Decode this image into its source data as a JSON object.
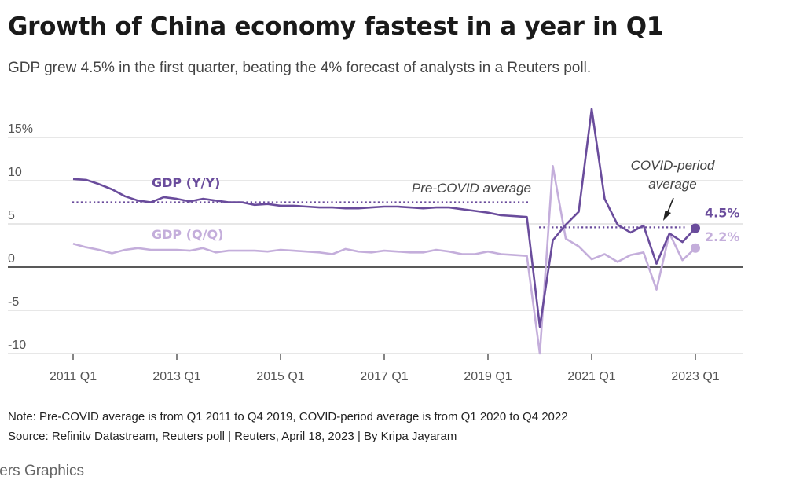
{
  "header": {
    "title": "Growth of China economy fastest in a year in Q1",
    "subtitle": "GDP grew 4.5% in the first quarter, beating the 4% forecast of analysts in a Reuters poll."
  },
  "chart_data": {
    "type": "line",
    "title": "",
    "xlabel": "",
    "ylabel": "",
    "ylim": [
      -10,
      18
    ],
    "y_ticks": [
      {
        "value": 15,
        "label": "15%"
      },
      {
        "value": 10,
        "label": "10"
      },
      {
        "value": 5,
        "label": "5"
      },
      {
        "value": 0,
        "label": "0"
      },
      {
        "value": -5,
        "label": "-5"
      },
      {
        "value": -10,
        "label": "-10"
      }
    ],
    "x_ticks": [
      "2011 Q1",
      "2013 Q1",
      "2015 Q1",
      "2017 Q1",
      "2019 Q1",
      "2021 Q1",
      "2023 Q1"
    ],
    "x_start": "2011 Q1",
    "x_end": "2023 Q1",
    "grid": true,
    "series": [
      {
        "name": "GDP (Y/Y)",
        "color": "#6a4c9c",
        "end_label": "4.5%",
        "values": [
          10.2,
          10.1,
          9.6,
          9.0,
          8.2,
          7.7,
          7.5,
          8.1,
          7.9,
          7.6,
          7.9,
          7.7,
          7.5,
          7.5,
          7.2,
          7.3,
          7.1,
          7.1,
          7.0,
          6.9,
          6.9,
          6.8,
          6.8,
          6.9,
          7.0,
          7.0,
          6.9,
          6.8,
          6.9,
          6.9,
          6.7,
          6.5,
          6.3,
          6.0,
          5.9,
          5.8,
          -6.9,
          3.1,
          4.9,
          6.4,
          18.3,
          7.9,
          4.9,
          4.0,
          4.8,
          0.4,
          3.9,
          2.9,
          4.5
        ]
      },
      {
        "name": "GDP (Q/Q)",
        "color": "#c4aedb",
        "end_label": "2.2%",
        "values": [
          2.7,
          2.3,
          2.0,
          1.6,
          2.0,
          2.2,
          2.0,
          2.0,
          2.0,
          1.9,
          2.2,
          1.7,
          1.9,
          1.9,
          1.9,
          1.8,
          2.0,
          1.9,
          1.8,
          1.7,
          1.5,
          2.1,
          1.8,
          1.7,
          1.9,
          1.8,
          1.7,
          1.7,
          2.0,
          1.8,
          1.5,
          1.5,
          1.8,
          1.5,
          1.4,
          1.3,
          -10.0,
          11.7,
          3.3,
          2.4,
          0.9,
          1.5,
          0.6,
          1.4,
          1.7,
          -2.6,
          3.9,
          0.8,
          2.2
        ]
      }
    ],
    "reference_lines": [
      {
        "label": "Pre-COVID average",
        "value": 7.5,
        "from": "2011 Q1",
        "to": "2019 Q4"
      },
      {
        "label": "COVID-period average",
        "value": 4.6,
        "from": "2020 Q1",
        "to": "2022 Q4"
      }
    ]
  },
  "footer": {
    "note": "Note: Pre-COVID average is from Q1 2011 to Q4 2019, COVID-period average is from Q1 2020 to Q4 2022",
    "source": "Source: Refinitv Datastream, Reuters poll | Reuters, April 18, 2023 | By Kripa Jayaram",
    "credit": "ters Graphics"
  }
}
